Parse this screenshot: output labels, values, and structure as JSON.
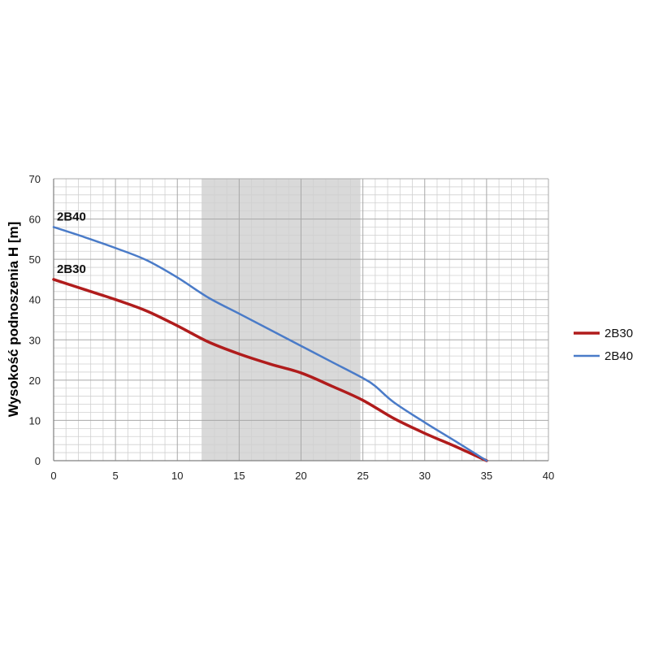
{
  "chart_data": {
    "type": "line",
    "title": "",
    "xlabel": "",
    "ylabel": "Wysokość podnoszenia H [m]",
    "xlim": [
      0,
      40
    ],
    "ylim": [
      0,
      70
    ],
    "x_ticks": [
      0,
      5,
      10,
      15,
      20,
      25,
      30,
      35,
      40
    ],
    "y_ticks": [
      0,
      10,
      20,
      30,
      40,
      50,
      60,
      70
    ],
    "grid": true,
    "shaded_x_range": [
      12,
      24.8
    ],
    "legend_position": "right",
    "series": [
      {
        "name": "2B30",
        "color": "#b01c1c",
        "x": [
          0,
          2.5,
          5,
          7.5,
          10,
          12.5,
          15,
          17.5,
          20,
          22.5,
          25,
          27.5,
          30,
          32.5,
          35
        ],
        "y": [
          45,
          42.5,
          40,
          37.2,
          33.5,
          29.5,
          26.5,
          24,
          21.8,
          18.5,
          15,
          10.5,
          6.8,
          3.5,
          0
        ]
      },
      {
        "name": "2B40",
        "color": "#4a7bc8",
        "x": [
          0,
          2.5,
          5,
          7.5,
          10,
          12.5,
          15,
          17.5,
          20,
          22.5,
          25,
          26,
          27.5,
          30,
          32.5,
          35
        ],
        "y": [
          58,
          55.5,
          52.8,
          49.8,
          45.5,
          40.5,
          36.5,
          32.5,
          28.5,
          24.5,
          20.5,
          18.5,
          14.5,
          9.5,
          4.8,
          0
        ]
      }
    ],
    "annotations": [
      {
        "text": "2B40",
        "series": "2B40"
      },
      {
        "text": "2B30",
        "series": "2B30"
      }
    ]
  }
}
